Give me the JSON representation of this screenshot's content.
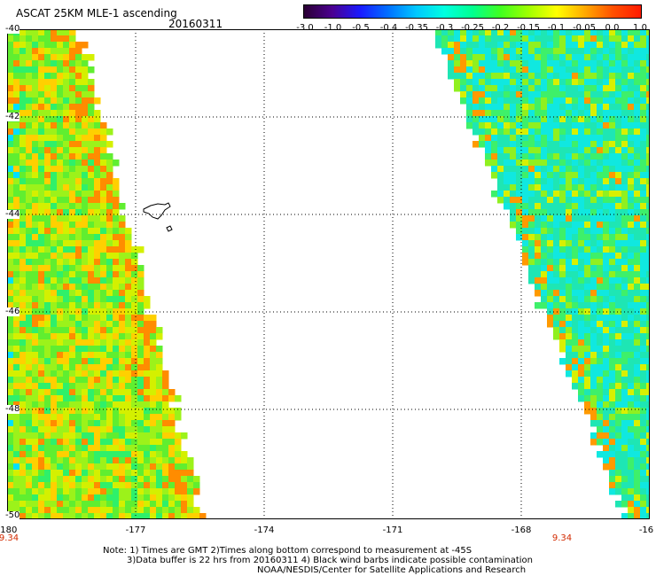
{
  "header": {
    "title": "ASCAT 25KM MLE-1 ascending",
    "date": "20160311"
  },
  "colorbar": {
    "tick_labels": [
      "-3.0",
      "-1.0",
      "-0.5",
      "-0.4",
      "-0.35",
      "-0.3",
      "-0.25",
      "-0.2",
      "-0.15",
      "-0.1",
      "-0.05",
      "0.0",
      "1.0"
    ],
    "colors": [
      "#2a0033",
      "#4b0090",
      "#1a1aff",
      "#0070ff",
      "#00c8ff",
      "#00ffe0",
      "#00ff90",
      "#40ff20",
      "#a0ff00",
      "#ffff00",
      "#ffaa00",
      "#ff5000",
      "#ff1a00"
    ]
  },
  "map": {
    "lat_labels": [
      "-40",
      "-42",
      "-44",
      "-46",
      "-48",
      "-50"
    ],
    "lon_labels": [
      "-180",
      "-177",
      "-174",
      "-171",
      "-168",
      "-16"
    ],
    "time_labels": [
      "9.34",
      "9.34"
    ],
    "grid": "dotted",
    "swath_colors": {
      "west_base": "#9cf21a",
      "east_base": "#1ee6b4"
    }
  },
  "notes": {
    "line1": "Note: 1) Times are GMT 2)Times along bottom correspond to measurement at -45S",
    "line2": "3)Data buffer is 22 hrs from 20160311 4) Black wind barbs indicate possible contamination",
    "line3": "NOAA/NESDIS/Center for Satellite Applications and Research"
  }
}
